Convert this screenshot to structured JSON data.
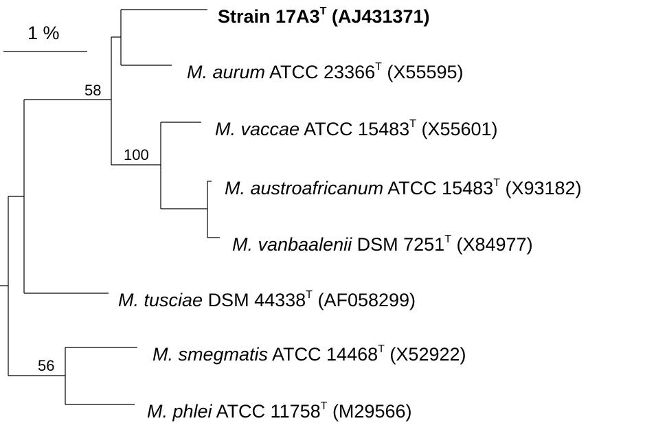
{
  "scale_bar": {
    "label": "1 %"
  },
  "bootstraps": {
    "b58": "58",
    "b100": "100",
    "b56": "56"
  },
  "taxa": [
    {
      "italic": "",
      "name": "Strain 17A3",
      "sup": "T",
      "acc": "(AJ431371)",
      "bold": true
    },
    {
      "italic": "M. aurum",
      "name": "ATCC 23366",
      "sup": "T",
      "acc": "(X55595)",
      "bold": false
    },
    {
      "italic": "M. vaccae",
      "name": "ATCC 15483",
      "sup": "T",
      "acc": "(X55601)",
      "bold": false
    },
    {
      "italic": "M. austroafricanum",
      "name": "ATCC 15483",
      "sup": "T",
      "acc": "(X93182)",
      "bold": false
    },
    {
      "italic": "M. vanbaalenii",
      "name": "DSM 7251",
      "sup": "T",
      "acc": "(X84977)",
      "bold": false
    },
    {
      "italic": "M. tusciae",
      "name": "DSM 44338",
      "sup": "T",
      "acc": "(AF058299)",
      "bold": false
    },
    {
      "italic": "M. smegmatis",
      "name": "ATCC 14468",
      "sup": "T",
      "acc": "(X52922)",
      "bold": false
    },
    {
      "italic": "M. phlei",
      "name": "ATCC 11758",
      "sup": "T",
      "acc": "(M29566)",
      "bold": false
    }
  ]
}
